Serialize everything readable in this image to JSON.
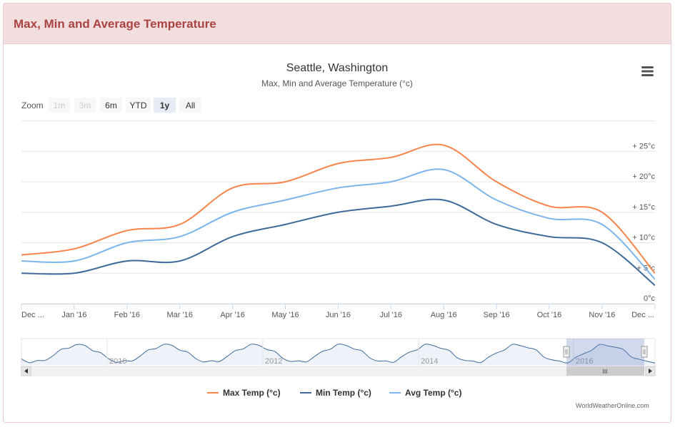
{
  "panel": {
    "title": "Max, Min and Average Temperature"
  },
  "chart_data": {
    "type": "line",
    "title": "Seattle, Washington",
    "subtitle": "Max, Min and Average Temperature (°c)",
    "y_axis": {
      "ticks": [
        "0°c",
        "+ 5°c",
        "+ 10°c",
        "+ 15°c",
        "+ 20°c",
        "+ 25°c"
      ],
      "min": 0,
      "max": 30
    },
    "x": [
      "Dec '15",
      "Jan '16",
      "Feb '16",
      "Mar '16",
      "Apr '16",
      "May '16",
      "Jun '16",
      "Jul '16",
      "Aug '16",
      "Sep '16",
      "Oct '16",
      "Nov '16",
      "Dec '16"
    ],
    "x_labels": [
      "Dec ...",
      "Jan '16",
      "Feb '16",
      "Mar '16",
      "Apr '16",
      "May '16",
      "Jun '16",
      "Jul '16",
      "Aug '16",
      "Sep '16",
      "Oct '16",
      "Nov '16",
      "Dec ..."
    ],
    "series": [
      {
        "name": "Max Temp (°c)",
        "color": "#f7844a",
        "values": [
          8,
          9,
          12,
          13,
          19,
          20,
          23,
          24,
          26,
          20,
          16,
          15,
          5
        ]
      },
      {
        "name": "Min Temp (°c)",
        "color": "#3e6a9a",
        "values": [
          5,
          5,
          7,
          7,
          11,
          13,
          15,
          16,
          17,
          13,
          11,
          10,
          3
        ]
      },
      {
        "name": "Avg Temp (°c)",
        "color": "#7cb5ec",
        "values": [
          7,
          7,
          10,
          11,
          15,
          17,
          19,
          20,
          22,
          17,
          14,
          13,
          4
        ]
      }
    ],
    "zoom": {
      "label": "Zoom",
      "buttons": [
        "1m",
        "3m",
        "6m",
        "YTD",
        "1y",
        "All"
      ],
      "disabled": [
        "1m",
        "3m"
      ],
      "selected": "1y"
    },
    "navigator": {
      "years": [
        "2010",
        "2012",
        "2014",
        "2016"
      ],
      "scroll_grip": "III"
    },
    "menu_icon": "hamburger-menu-icon",
    "attribution": "WorldWeatherOnline.com"
  }
}
